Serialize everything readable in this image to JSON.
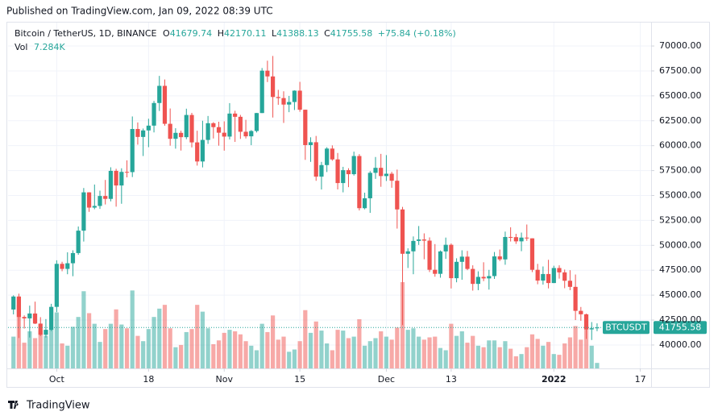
{
  "header": {
    "published": "Published on TradingView.com, Jan 09, 2022 08:39 UTC",
    "footer": "TradingView"
  },
  "chart_data": {
    "type": "candlestick",
    "symbol_title": "Bitcoin / TetherUS, 1D, BINANCE",
    "symbol": "BTCUSDT",
    "ohlc_letters": [
      "O",
      "H",
      "L",
      "C"
    ],
    "change_label": "+75.84 (+0.18%)",
    "volume_name": "Vol",
    "last_volume_label": "7.284K",
    "colors": {
      "up": "#26a69a",
      "down": "#ef5350"
    },
    "grid": true,
    "x": [
      "2021-09-23",
      "2021-09-24",
      "2021-09-25",
      "2021-09-26",
      "2021-09-27",
      "2021-09-28",
      "2021-09-29",
      "2021-09-30",
      "2021-10-01",
      "2021-10-02",
      "2021-10-03",
      "2021-10-04",
      "2021-10-05",
      "2021-10-06",
      "2021-10-07",
      "2021-10-08",
      "2021-10-09",
      "2021-10-10",
      "2021-10-11",
      "2021-10-12",
      "2021-10-13",
      "2021-10-14",
      "2021-10-15",
      "2021-10-16",
      "2021-10-17",
      "2021-10-18",
      "2021-10-19",
      "2021-10-20",
      "2021-10-21",
      "2021-10-22",
      "2021-10-23",
      "2021-10-24",
      "2021-10-25",
      "2021-10-26",
      "2021-10-27",
      "2021-10-28",
      "2021-10-29",
      "2021-10-30",
      "2021-10-31",
      "2021-11-01",
      "2021-11-02",
      "2021-11-03",
      "2021-11-04",
      "2021-11-05",
      "2021-11-06",
      "2021-11-07",
      "2021-11-08",
      "2021-11-09",
      "2021-11-10",
      "2021-11-11",
      "2021-11-12",
      "2021-11-13",
      "2021-11-14",
      "2021-11-15",
      "2021-11-16",
      "2021-11-17",
      "2021-11-18",
      "2021-11-19",
      "2021-11-20",
      "2021-11-21",
      "2021-11-22",
      "2021-11-23",
      "2021-11-24",
      "2021-11-25",
      "2021-11-26",
      "2021-11-27",
      "2021-11-28",
      "2021-11-29",
      "2021-11-30",
      "2021-12-01",
      "2021-12-02",
      "2021-12-03",
      "2021-12-04",
      "2021-12-05",
      "2021-12-06",
      "2021-12-07",
      "2021-12-08",
      "2021-12-09",
      "2021-12-10",
      "2021-12-11",
      "2021-12-12",
      "2021-12-13",
      "2021-12-14",
      "2021-12-15",
      "2021-12-16",
      "2021-12-17",
      "2021-12-18",
      "2021-12-19",
      "2021-12-20",
      "2021-12-21",
      "2021-12-22",
      "2021-12-23",
      "2021-12-24",
      "2021-12-25",
      "2021-12-26",
      "2021-12-27",
      "2021-12-28",
      "2021-12-29",
      "2021-12-30",
      "2021-12-31",
      "2022-01-01",
      "2022-01-02",
      "2022-01-03",
      "2022-01-04",
      "2022-01-05",
      "2022-01-06",
      "2022-01-07",
      "2022-01-08",
      "2022-01-09"
    ],
    "open": [
      43560,
      44865,
      42810,
      42670,
      43160,
      42147,
      41026,
      41524,
      43824,
      48141,
      47634,
      48200,
      49224,
      51471,
      55315,
      53785,
      53951,
      54949,
      54659,
      57471,
      56005,
      57367,
      57347,
      61672,
      60875,
      61528,
      62009,
      64280,
      66001,
      62193,
      60688,
      61286,
      60852,
      63078,
      60328,
      58413,
      60575,
      62253,
      61859,
      61299,
      60911,
      63219,
      62896,
      61395,
      60937,
      61470,
      63273,
      67525,
      66947,
      64882,
      64774,
      64122,
      64380,
      65519,
      63606,
      60058,
      60344,
      56891,
      58052,
      59707,
      58622,
      56247,
      57541,
      57138,
      58960,
      53726,
      54721,
      57274,
      57776,
      56950,
      57184,
      56480,
      53601,
      49152,
      49397,
      50441,
      50588,
      50471,
      47545,
      47140,
      49389,
      50053,
      46702,
      48343,
      48864,
      47632,
      46131,
      46834,
      46681,
      46914,
      48889,
      48588,
      50838,
      50820,
      50399,
      50775,
      50701,
      47543,
      46464,
      47120,
      46216,
      47722,
      47286,
      46446,
      45833,
      43425,
      43082,
      41566,
      41679.74
    ],
    "high": [
      44980,
      45150,
      42970,
      43950,
      44350,
      42790,
      42600,
      44130,
      48500,
      48350,
      49300,
      49500,
      51890,
      55750,
      55330,
      56100,
      55490,
      56560,
      57830,
      57680,
      57730,
      58530,
      62930,
      62330,
      61720,
      62700,
      64490,
      67000,
      66640,
      63730,
      61750,
      61500,
      63710,
      63290,
      61500,
      62500,
      62980,
      62360,
      62400,
      62440,
      64270,
      63500,
      63086,
      62595,
      61560,
      63286,
      67789,
      68524,
      69000,
      65600,
      65450,
      64990,
      65550,
      66401,
      63617,
      60840,
      60976,
      58372,
      59845,
      60029,
      59266,
      57875,
      57735,
      59398,
      59150,
      55280,
      57445,
      58865,
      59176,
      59053,
      57375,
      57600,
      53859,
      49699,
      50891,
      51936,
      51200,
      50797,
      50125,
      49485,
      50777,
      50189,
      48700,
      49500,
      49436,
      47995,
      47392,
      48300,
      47537,
      49328,
      49576,
      51375,
      51810,
      51156,
      51280,
      52088,
      50704,
      48139,
      47879,
      48548,
      47954,
      47990,
      47570,
      47505,
      47070,
      43816,
      43145,
      42300,
      42170.11
    ],
    "low": [
      43070,
      40700,
      41650,
      40750,
      42100,
      40900,
      40750,
      41400,
      43300,
      47400,
      47100,
      46900,
      49050,
      50380,
      53360,
      53620,
      53660,
      54100,
      54410,
      53880,
      54170,
      56820,
      56850,
      60100,
      58960,
      59850,
      61330,
      63480,
      62000,
      60000,
      59700,
      59510,
      60650,
      59820,
      58000,
      57820,
      60175,
      60720,
      60000,
      59500,
      60620,
      60380,
      60677,
      60721,
      60050,
      61322,
      63273,
      66382,
      62822,
      64100,
      62278,
      63360,
      63576,
      63400,
      58575,
      58373,
      56474,
      55600,
      57353,
      58486,
      55610,
      55317,
      55837,
      57000,
      53500,
      53610,
      53256,
      56666,
      55875,
      56458,
      55777,
      51680,
      42000,
      47727,
      47100,
      50039,
      48600,
      47320,
      46852,
      46751,
      48638,
      45672,
      46290,
      46547,
      47511,
      45456,
      45500,
      46406,
      45558,
      46630,
      48421,
      48050,
      50384,
      50142,
      49412,
      50449,
      47313,
      46096,
      46060,
      45678,
      46208,
      46654,
      45696,
      45500,
      42500,
      42430,
      40610,
      40501,
      41388.13
    ],
    "close": [
      44865,
      42810,
      42670,
      43160,
      42147,
      41026,
      41524,
      43824,
      48141,
      47634,
      48200,
      49224,
      51471,
      55315,
      53785,
      53951,
      54949,
      54659,
      57471,
      56005,
      57367,
      57347,
      61672,
      60875,
      61528,
      62009,
      64280,
      66001,
      62193,
      60688,
      61286,
      60852,
      63078,
      60328,
      58413,
      60575,
      62253,
      61859,
      61299,
      60911,
      63219,
      62896,
      61395,
      60937,
      61470,
      63273,
      67525,
      66947,
      64882,
      64774,
      64122,
      64380,
      65519,
      63606,
      60058,
      60344,
      56891,
      58052,
      59707,
      58622,
      56247,
      57541,
      57138,
      58960,
      53726,
      54721,
      57274,
      57776,
      56950,
      57184,
      56480,
      53601,
      49152,
      49397,
      50441,
      50588,
      50471,
      47545,
      47140,
      49389,
      50053,
      46702,
      48343,
      48864,
      47632,
      46131,
      46834,
      46681,
      46914,
      48889,
      48588,
      50838,
      50820,
      50399,
      50775,
      50701,
      47543,
      46464,
      47120,
      46216,
      47722,
      47286,
      46446,
      45833,
      43425,
      43082,
      41566,
      41679,
      41755.58
    ],
    "volume": [
      42000,
      84000,
      34000,
      49000,
      40000,
      50000,
      43000,
      55000,
      74000,
      33000,
      30000,
      55000,
      68000,
      102000,
      73000,
      59000,
      35000,
      52000,
      59000,
      78000,
      58000,
      53000,
      103000,
      43000,
      36000,
      52000,
      68000,
      79000,
      84000,
      53000,
      28000,
      31000,
      48000,
      52000,
      84000,
      75000,
      53000,
      32000,
      37000,
      47000,
      51000,
      49000,
      45000,
      36000,
      30000,
      24000,
      59000,
      48000,
      70000,
      38000,
      42000,
      22000,
      25000,
      36000,
      77000,
      47000,
      62000,
      50000,
      33000,
      24000,
      51000,
      50000,
      40000,
      42000,
      65000,
      30000,
      36000,
      40000,
      49000,
      42000,
      38000,
      54000,
      114000,
      51000,
      53000,
      42000,
      38000,
      41000,
      42000,
      27000,
      24000,
      59000,
      43000,
      49000,
      34000,
      43000,
      30000,
      28000,
      37000,
      37000,
      28000,
      36000,
      26000,
      16000,
      19000,
      28000,
      45000,
      39000,
      30000,
      35000,
      19000,
      18000,
      33000,
      41000,
      56000,
      38000,
      58000,
      30000,
      7284
    ],
    "xlim": [
      "2021-09-22",
      "2022-01-19"
    ],
    "xticks": [
      {
        "value": "2021-10-01",
        "label": "Oct"
      },
      {
        "value": "2021-10-18",
        "label": "18"
      },
      {
        "value": "2021-11-01",
        "label": "Nov"
      },
      {
        "value": "2021-11-15",
        "label": "15"
      },
      {
        "value": "2021-12-01",
        "label": "Dec"
      },
      {
        "value": "2021-12-13",
        "label": "13"
      },
      {
        "value": "2022-01-01",
        "label": "2022"
      },
      {
        "value": "2022-01-17",
        "label": "17"
      }
    ],
    "ylim": [
      37650,
      72350
    ],
    "yticks": [
      {
        "value": 40000,
        "label": "40000.00"
      },
      {
        "value": 42500,
        "label": "42500.00"
      },
      {
        "value": 45000,
        "label": "45000.00"
      },
      {
        "value": 47500,
        "label": "47500.00"
      },
      {
        "value": 50000,
        "label": "50000.00"
      },
      {
        "value": 52500,
        "label": "52500.00"
      },
      {
        "value": 55000,
        "label": "55000.00"
      },
      {
        "value": 57500,
        "label": "57500.00"
      },
      {
        "value": 60000,
        "label": "60000.00"
      },
      {
        "value": 62500,
        "label": "62500.00"
      },
      {
        "value": 65000,
        "label": "65000.00"
      },
      {
        "value": 67500,
        "label": "67500.00"
      },
      {
        "value": 70000,
        "label": "70000.00"
      }
    ]
  }
}
